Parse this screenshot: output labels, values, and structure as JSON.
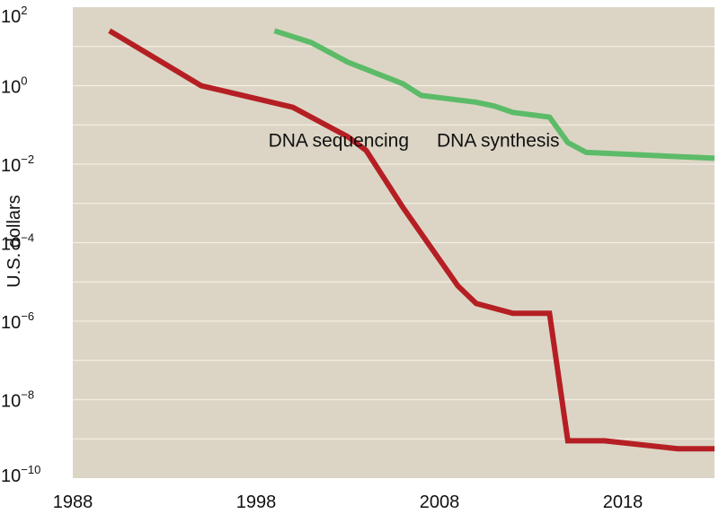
{
  "chart_data": {
    "type": "line",
    "title": "",
    "xlabel": "",
    "ylabel": "U.S. dollars",
    "yscale": "log",
    "xlim": [
      1988,
      2023
    ],
    "ylim_exponent": [
      -10,
      2
    ],
    "background": "#dcd5c5",
    "grid": true,
    "x_ticks": [
      {
        "value": 1988,
        "label": "1988"
      },
      {
        "value": 1998,
        "label": "1998"
      },
      {
        "value": 2008,
        "label": "2008"
      },
      {
        "value": 2018,
        "label": "2018"
      }
    ],
    "y_ticks": [
      {
        "exponent": 2,
        "base": "10",
        "sup": "2"
      },
      {
        "exponent": 0,
        "base": "10",
        "sup": "0"
      },
      {
        "exponent": -2,
        "base": "10",
        "sup": "−2"
      },
      {
        "exponent": -4,
        "base": "10",
        "sup": "−4"
      },
      {
        "exponent": -6,
        "base": "10",
        "sup": "−6"
      },
      {
        "exponent": -8,
        "base": "10",
        "sup": "−8"
      },
      {
        "exponent": -10,
        "base": "10",
        "sup": "−10"
      }
    ],
    "series": [
      {
        "name": "DNA sequencing",
        "color": "#b51f24",
        "points": [
          [
            1990,
            1.4
          ],
          [
            1995,
            0.0
          ],
          [
            1998,
            -0.33
          ],
          [
            2000,
            -0.55
          ],
          [
            2003,
            -1.3
          ],
          [
            2004,
            -1.65
          ],
          [
            2006,
            -3.1
          ],
          [
            2009,
            -5.1
          ],
          [
            2010,
            -5.55
          ],
          [
            2012,
            -5.8
          ],
          [
            2014,
            -5.8
          ],
          [
            2015,
            -9.05
          ],
          [
            2017,
            -9.05
          ],
          [
            2021,
            -9.25
          ],
          [
            2023,
            -9.25
          ]
        ]
      },
      {
        "name": "DNA synthesis",
        "color": "#5cbb68",
        "points": [
          [
            1999,
            1.4
          ],
          [
            2001,
            1.1
          ],
          [
            2002,
            0.85
          ],
          [
            2003,
            0.6
          ],
          [
            2006,
            0.05
          ],
          [
            2007,
            -0.25
          ],
          [
            2010,
            -0.42
          ],
          [
            2011,
            -0.52
          ],
          [
            2012,
            -0.68
          ],
          [
            2014,
            -0.8
          ],
          [
            2015,
            -1.45
          ],
          [
            2016,
            -1.7
          ],
          [
            2023,
            -1.85
          ]
        ]
      }
    ],
    "annotations": [
      {
        "text": "DNA sequencing",
        "x": 2002.5,
        "y_exponent": -1.55,
        "anchor": "middle"
      },
      {
        "text": "DNA synthesis",
        "x": 2011.2,
        "y_exponent": -1.55,
        "anchor": "middle"
      }
    ]
  }
}
